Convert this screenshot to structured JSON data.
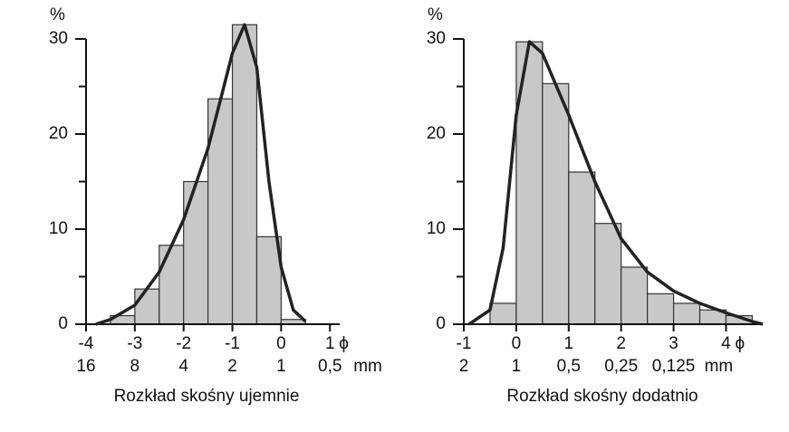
{
  "chart_data": [
    {
      "type": "histogram",
      "title": "Rozkład skośny ujemnie",
      "ylabel": "%",
      "xunit": "ϕ",
      "x2unit": "mm",
      "bins": [
        -3.5,
        -3,
        -2.5,
        -2,
        -1.5,
        -1,
        -0.5,
        0,
        0.5
      ],
      "counts": [
        0.9,
        3.7,
        8.3,
        15,
        23.7,
        31.5,
        9.2,
        0.5
      ],
      "color": "#c8c8c8",
      "curve": {
        "x": [
          -3.8,
          -3.5,
          -3,
          -2.5,
          -2,
          -1.5,
          -1.2,
          -1,
          -0.75,
          -0.5,
          -0.25,
          0,
          0.25,
          0.5
        ],
        "values": [
          0,
          0.5,
          2,
          5.5,
          11,
          18.5,
          24.5,
          28.5,
          31.5,
          27,
          15,
          6,
          1.5,
          0.3
        ],
        "color": "#222222"
      },
      "xlim": [
        -4,
        1.2
      ],
      "xticks": [
        -4,
        -3,
        -2,
        -1,
        0,
        1
      ],
      "x2ticks": [
        {
          "value": -4,
          "label": "16"
        },
        {
          "value": -3,
          "label": "8"
        },
        {
          "value": -2,
          "label": "4"
        },
        {
          "value": -1,
          "label": "2"
        },
        {
          "value": 0,
          "label": "1"
        },
        {
          "value": 1,
          "label": "0,5"
        }
      ],
      "ylim": [
        0,
        30
      ],
      "yticks": [
        0,
        10,
        20,
        30
      ],
      "yminor_ticks": [
        5,
        15,
        25
      ]
    },
    {
      "type": "histogram",
      "title": "Rozkład skośny dodatnio",
      "ylabel": "%",
      "xunit": "ϕ",
      "x2unit": "mm",
      "bins": [
        -0.5,
        0,
        0.5,
        1,
        1.5,
        2,
        2.5,
        3,
        3.5,
        4,
        4.5
      ],
      "counts": [
        2.2,
        29.7,
        25.3,
        16,
        10.6,
        6,
        3.2,
        2.2,
        1.5,
        0.9
      ],
      "color": "#c8c8c8",
      "curve": {
        "x": [
          -0.9,
          -0.5,
          -0.25,
          0,
          0.25,
          0.5,
          1,
          1.5,
          2,
          2.5,
          3,
          3.5,
          4,
          4.5,
          4.7
        ],
        "values": [
          0,
          1.5,
          8,
          22,
          29.7,
          28.5,
          22,
          15,
          9,
          5.5,
          3.5,
          2.2,
          1.2,
          0.3,
          0
        ],
        "color": "#222222"
      },
      "xlim": [
        -1,
        4.7
      ],
      "xticks": [
        -1,
        0,
        1,
        2,
        3,
        4
      ],
      "x2ticks": [
        {
          "value": -1,
          "label": "2"
        },
        {
          "value": 0,
          "label": "1"
        },
        {
          "value": 1,
          "label": "0,5"
        },
        {
          "value": 2,
          "label": "0,25"
        },
        {
          "value": 3,
          "label": "0,125"
        }
      ],
      "ylim": [
        0,
        30
      ],
      "yticks": [
        0,
        10,
        20,
        30
      ],
      "yminor_ticks": [
        5,
        15,
        25
      ]
    }
  ]
}
